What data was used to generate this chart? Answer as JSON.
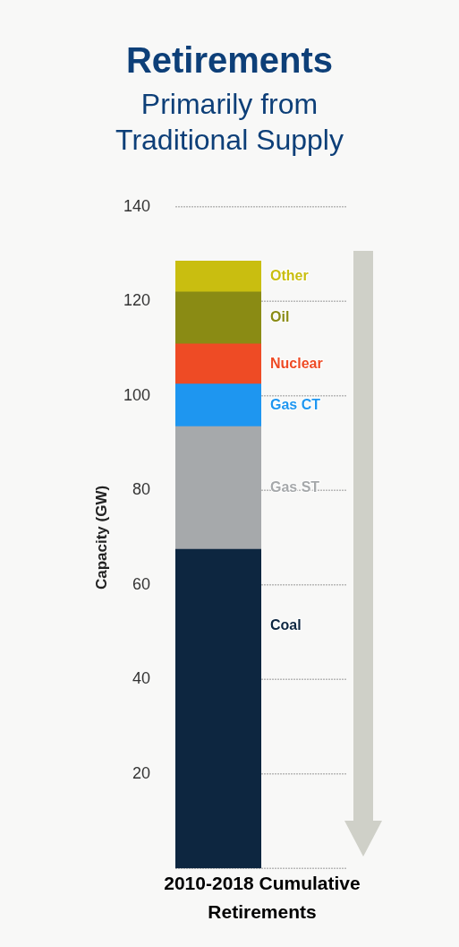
{
  "chart_data": {
    "type": "bar",
    "title": "Retirements",
    "subtitle": "Primarily from\nTraditional Supply",
    "xlabel": "2010-2018 Cumulative Retirements",
    "ylabel": "Capacity (GW)",
    "categories": [
      null
    ],
    "stacked": true,
    "series": [
      {
        "name": "Coal",
        "color": "#0d2640",
        "values": [
          67.5
        ]
      },
      {
        "name": "Gas ST",
        "color": "#a6a9ab",
        "values": [
          26
        ]
      },
      {
        "name": "Gas CT",
        "color": "#1e96f0",
        "values": [
          9
        ]
      },
      {
        "name": "Nuclear",
        "color": "#ee4b25",
        "values": [
          8.5
        ]
      },
      {
        "name": "Oil",
        "color": "#8a8b14",
        "values": [
          11
        ]
      },
      {
        "name": "Other",
        "color": "#c9be10",
        "values": [
          6.5
        ]
      }
    ],
    "ylim": [
      0,
      140
    ],
    "yticks": [
      {
        "value": 0,
        "label": null
      },
      20,
      40,
      60,
      80,
      100,
      120,
      140
    ],
    "grid": "y",
    "legend": false
  }
}
